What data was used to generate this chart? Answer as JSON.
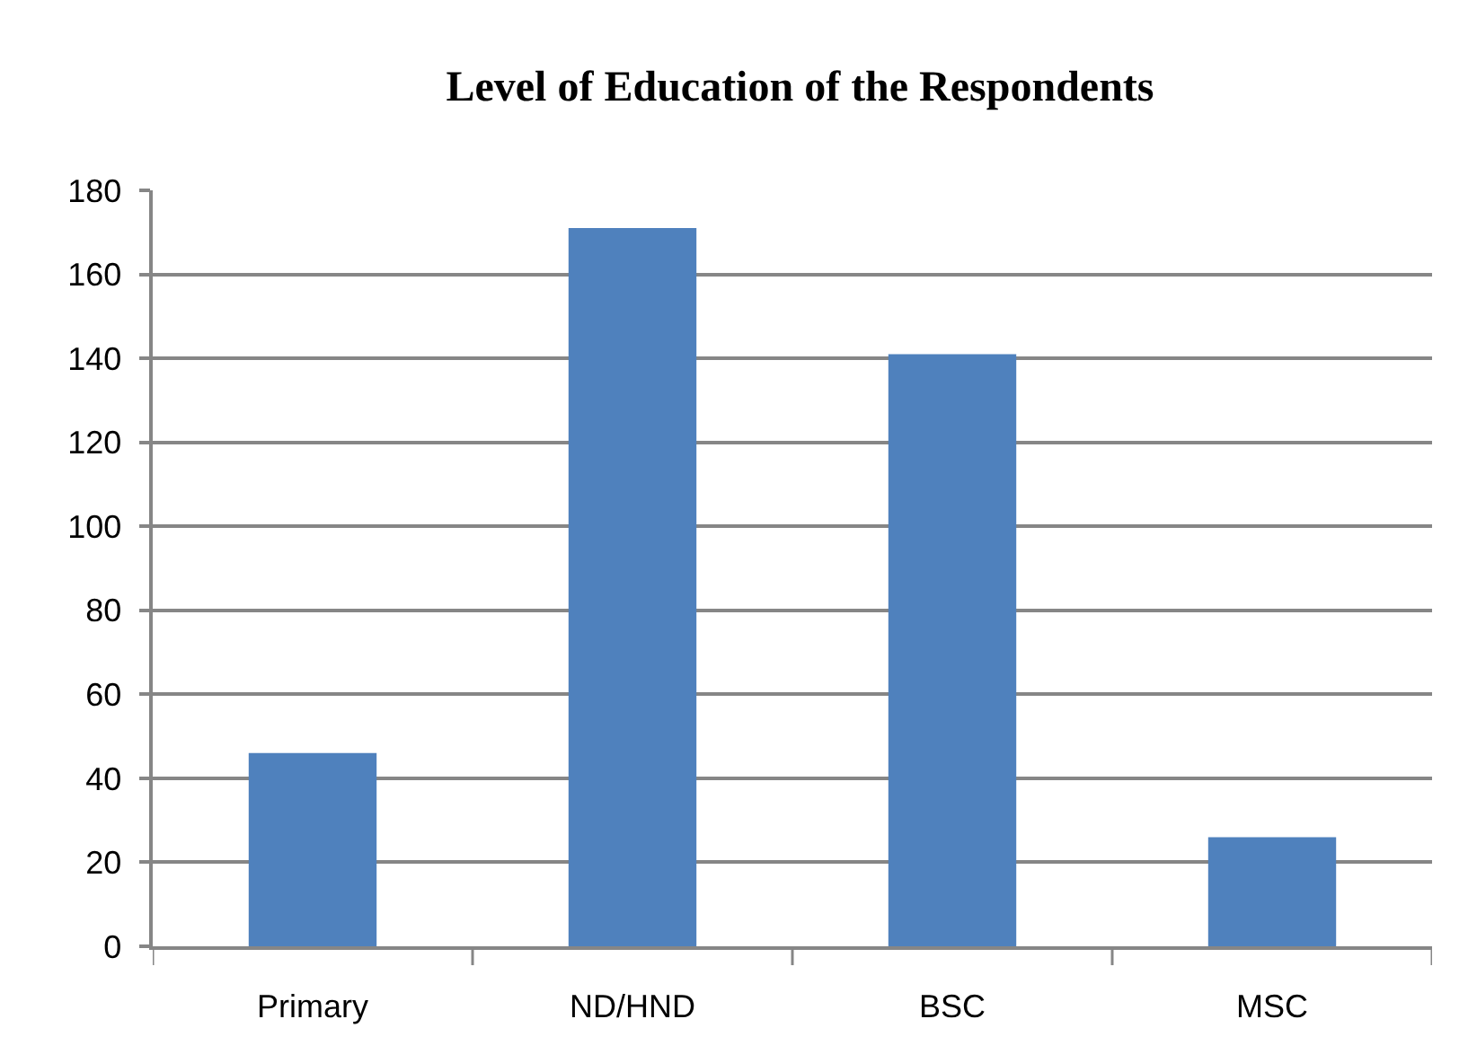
{
  "chart_data": {
    "type": "bar",
    "title": "Level of Education of the Respondents",
    "categories": [
      "Primary",
      "ND/HND",
      "BSC",
      "MSC"
    ],
    "values": [
      46,
      171,
      141,
      26
    ],
    "color": "#4f81bd",
    "ylim": [
      0,
      180
    ],
    "yticks": [
      0,
      20,
      40,
      60,
      80,
      100,
      120,
      140,
      160,
      180
    ],
    "grid": "y"
  }
}
